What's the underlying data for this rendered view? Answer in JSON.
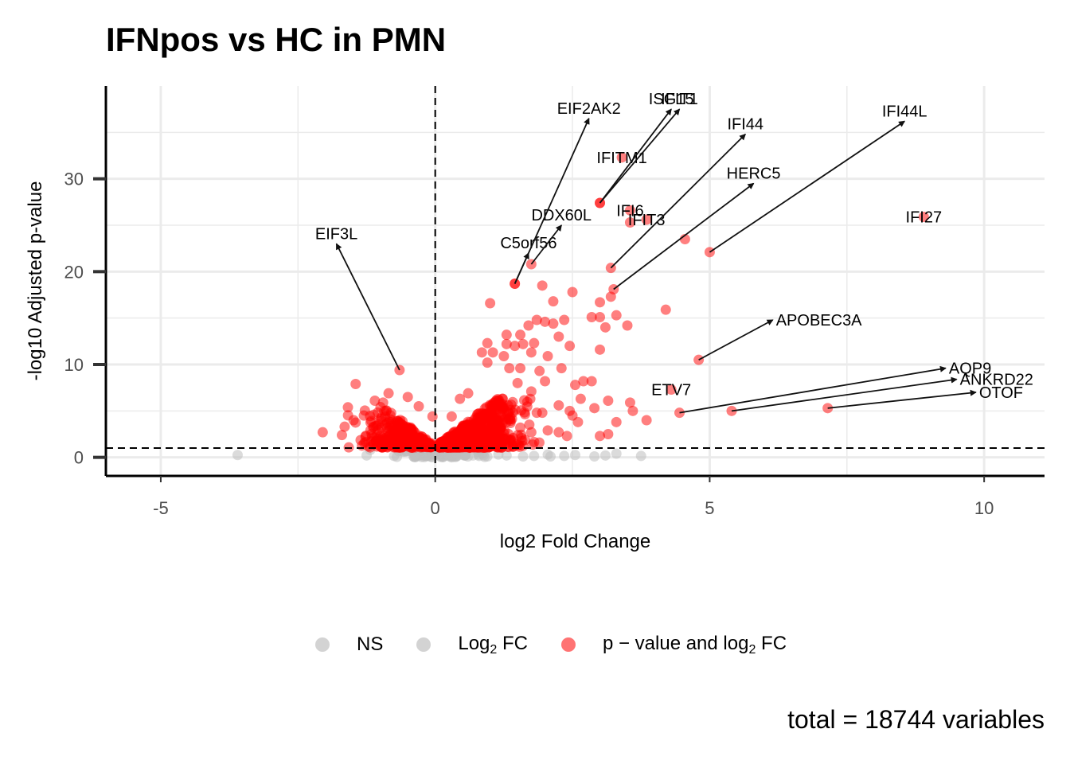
{
  "chart_data": {
    "type": "scatter",
    "title": "IFNpos vs HC in PMN",
    "xlabel": "log2 Fold Change",
    "ylabel": "-log10 Adjusted p-value",
    "xlim": [
      -6,
      11.1
    ],
    "ylim": [
      -2,
      40
    ],
    "x_ticks": [
      -5,
      0,
      5,
      10
    ],
    "y_ticks": [
      0,
      10,
      20,
      30
    ],
    "grid": true,
    "thresholds": {
      "log2fc": 0,
      "neg_log10_p": 1
    },
    "caption": "total = 18744 variables",
    "legend": {
      "position": "bottom",
      "entries": [
        {
          "key": "ns",
          "label": "NS",
          "color": "#d3d3d3"
        },
        {
          "key": "fc",
          "label_main": "Log",
          "label_sub": "2",
          "label_tail": " FC",
          "color": "#d3d3d3"
        },
        {
          "key": "pfc",
          "label_main": "p − value and log",
          "label_sub": "2",
          "label_tail": " FC",
          "color": "#ff0000"
        }
      ]
    },
    "colors": {
      "significant": "#ff0000",
      "not_significant": "#bebebe"
    },
    "labeled_genes": [
      {
        "gene": "EIF3L",
        "x": -0.65,
        "y": 9.4,
        "lx": -1.8,
        "ly": 23
      },
      {
        "gene": "C5orf56",
        "x": 1.45,
        "y": 18.7,
        "lx": 1.7,
        "ly": 22
      },
      {
        "gene": "DDX60L",
        "x": 1.75,
        "y": 20.8,
        "lx": 2.3,
        "ly": 25
      },
      {
        "gene": "EIF2AK2",
        "x": 1.45,
        "y": 18.7,
        "lx": 2.8,
        "ly": 36.5
      },
      {
        "gene": "IFITM1",
        "x": 3.4,
        "y": 32.3,
        "lx": 3.4,
        "ly": 32.3
      },
      {
        "gene": "ISG15",
        "x": 3.0,
        "y": 27.4,
        "lx": 4.3,
        "ly": 37.5
      },
      {
        "gene": "IFIT1",
        "x": 3.0,
        "y": 27.4,
        "lx": 4.45,
        "ly": 37.5
      },
      {
        "gene": "IFI6",
        "x": 3.55,
        "y": 26.6,
        "lx": 3.55,
        "ly": 26.6
      },
      {
        "gene": "IFIT3",
        "x": 3.85,
        "y": 25.6,
        "lx": 3.85,
        "ly": 25.6
      },
      {
        "gene": "IFI44",
        "x": 3.2,
        "y": 20.4,
        "lx": 5.65,
        "ly": 34.8
      },
      {
        "gene": "HERC5",
        "x": 3.25,
        "y": 18.1,
        "lx": 5.8,
        "ly": 29.5
      },
      {
        "gene": "IFI44L",
        "x": 5.0,
        "y": 22.1,
        "lx": 8.55,
        "ly": 36.2
      },
      {
        "gene": "IFI27",
        "x": 8.9,
        "y": 25.9,
        "lx": 8.9,
        "ly": 25.9
      },
      {
        "gene": "APOBEC3A",
        "x": 4.8,
        "y": 10.5,
        "lx": 6.15,
        "ly": 14.8
      },
      {
        "gene": "ETV7",
        "x": 4.3,
        "y": 7.3,
        "lx": 4.3,
        "ly": 7.3
      },
      {
        "gene": "AQP9",
        "x": 4.45,
        "y": 4.8,
        "lx": 9.3,
        "ly": 9.6
      },
      {
        "gene": "ANKRD22",
        "x": 5.4,
        "y": 5.0,
        "lx": 9.5,
        "ly": 8.4
      },
      {
        "gene": "OTOF",
        "x": 7.15,
        "y": 5.3,
        "lx": 9.85,
        "ly": 7.0
      }
    ],
    "other_significant_points": [
      [
        -1.45,
        7.9
      ],
      [
        -0.95,
        5.9
      ],
      [
        -2.05,
        2.7
      ],
      [
        -1.7,
        2.4
      ],
      [
        -1.65,
        3.3
      ],
      [
        -0.85,
        6.9
      ],
      [
        -0.5,
        6.5
      ],
      [
        -0.3,
        5.5
      ],
      [
        -1.1,
        6.1
      ],
      [
        -1.3,
        4.5
      ],
      [
        0.45,
        6.3
      ],
      [
        0.6,
        6.9
      ],
      [
        0.55,
        3.4
      ],
      [
        0.3,
        4.4
      ],
      [
        -0.05,
        4.4
      ],
      [
        0.1,
        1.6
      ],
      [
        1.0,
        16.6
      ],
      [
        1.95,
        18.5
      ],
      [
        1.3,
        13.2
      ],
      [
        1.7,
        14.2
      ],
      [
        1.55,
        13.2
      ],
      [
        2.0,
        14.6
      ],
      [
        1.85,
        14.8
      ],
      [
        2.15,
        14.4
      ],
      [
        2.35,
        14.8
      ],
      [
        2.5,
        17.8
      ],
      [
        2.15,
        16.8
      ],
      [
        1.8,
        12.3
      ],
      [
        2.45,
        12.0
      ],
      [
        2.25,
        13.0
      ],
      [
        1.6,
        12.2
      ],
      [
        1.3,
        12.2
      ],
      [
        1.45,
        12.0
      ],
      [
        0.95,
        12.3
      ],
      [
        1.05,
        11.3
      ],
      [
        0.85,
        11.3
      ],
      [
        1.25,
        10.9
      ],
      [
        0.95,
        10.2
      ],
      [
        1.35,
        9.6
      ],
      [
        1.75,
        11.3
      ],
      [
        2.05,
        10.9
      ],
      [
        1.55,
        9.6
      ],
      [
        1.9,
        9.3
      ],
      [
        2.3,
        9.6
      ],
      [
        1.5,
        8.0
      ],
      [
        1.75,
        7.1
      ],
      [
        2.0,
        8.2
      ],
      [
        2.7,
        8.2
      ],
      [
        2.55,
        7.8
      ],
      [
        2.85,
        8.2
      ],
      [
        3.0,
        16.7
      ],
      [
        3.2,
        17.3
      ],
      [
        2.85,
        15.1
      ],
      [
        3.0,
        15.1
      ],
      [
        3.1,
        14.0
      ],
      [
        3.3,
        15.3
      ],
      [
        3.5,
        14.2
      ],
      [
        4.2,
        15.9
      ],
      [
        4.55,
        23.5
      ],
      [
        3.55,
        25.3
      ],
      [
        3.0,
        11.6
      ],
      [
        2.65,
        6.3
      ],
      [
        2.9,
        5.3
      ],
      [
        3.15,
        6.1
      ],
      [
        3.55,
        5.9
      ],
      [
        3.6,
        5.0
      ],
      [
        3.85,
        4.0
      ],
      [
        3.3,
        3.8
      ],
      [
        3.15,
        2.5
      ],
      [
        3.0,
        2.3
      ],
      [
        2.45,
        5.0
      ],
      [
        2.5,
        4.5
      ],
      [
        2.6,
        3.8
      ],
      [
        2.4,
        2.3
      ],
      [
        2.25,
        2.7
      ],
      [
        2.05,
        2.9
      ],
      [
        1.95,
        4.8
      ],
      [
        1.85,
        4.8
      ],
      [
        1.75,
        2.7
      ],
      [
        1.55,
        3.2
      ],
      [
        2.25,
        5.6
      ]
    ],
    "not_significant_points": [
      [
        -3.6,
        0.25
      ],
      [
        -1.25,
        0.2
      ],
      [
        -0.75,
        0.15
      ],
      [
        0.8,
        0.15
      ],
      [
        1.3,
        0.2
      ],
      [
        1.6,
        0.1
      ],
      [
        1.8,
        0.15
      ],
      [
        2.05,
        0.3
      ],
      [
        2.1,
        0.1
      ],
      [
        2.35,
        0.15
      ],
      [
        2.55,
        0.25
      ],
      [
        2.9,
        0.1
      ],
      [
        3.1,
        0.2
      ],
      [
        3.3,
        0.4
      ],
      [
        3.75,
        0.15
      ],
      [
        0.2,
        0.3
      ],
      [
        0.4,
        0.15
      ],
      [
        0.55,
        0.25
      ],
      [
        0.95,
        0.1
      ],
      [
        1.15,
        0.3
      ],
      [
        -0.2,
        0.2
      ],
      [
        -0.05,
        0.35
      ]
    ],
    "clusters": [
      {
        "x_mean": -0.6,
        "x_sd": 0.32,
        "y_max": 5.5,
        "count": 340,
        "x_min": -2.0,
        "x_max": -0.08
      },
      {
        "x_mean": 0.75,
        "x_sd": 0.42,
        "y_max": 6.5,
        "count": 620,
        "x_min": 0.08,
        "x_max": 2.3
      }
    ]
  }
}
